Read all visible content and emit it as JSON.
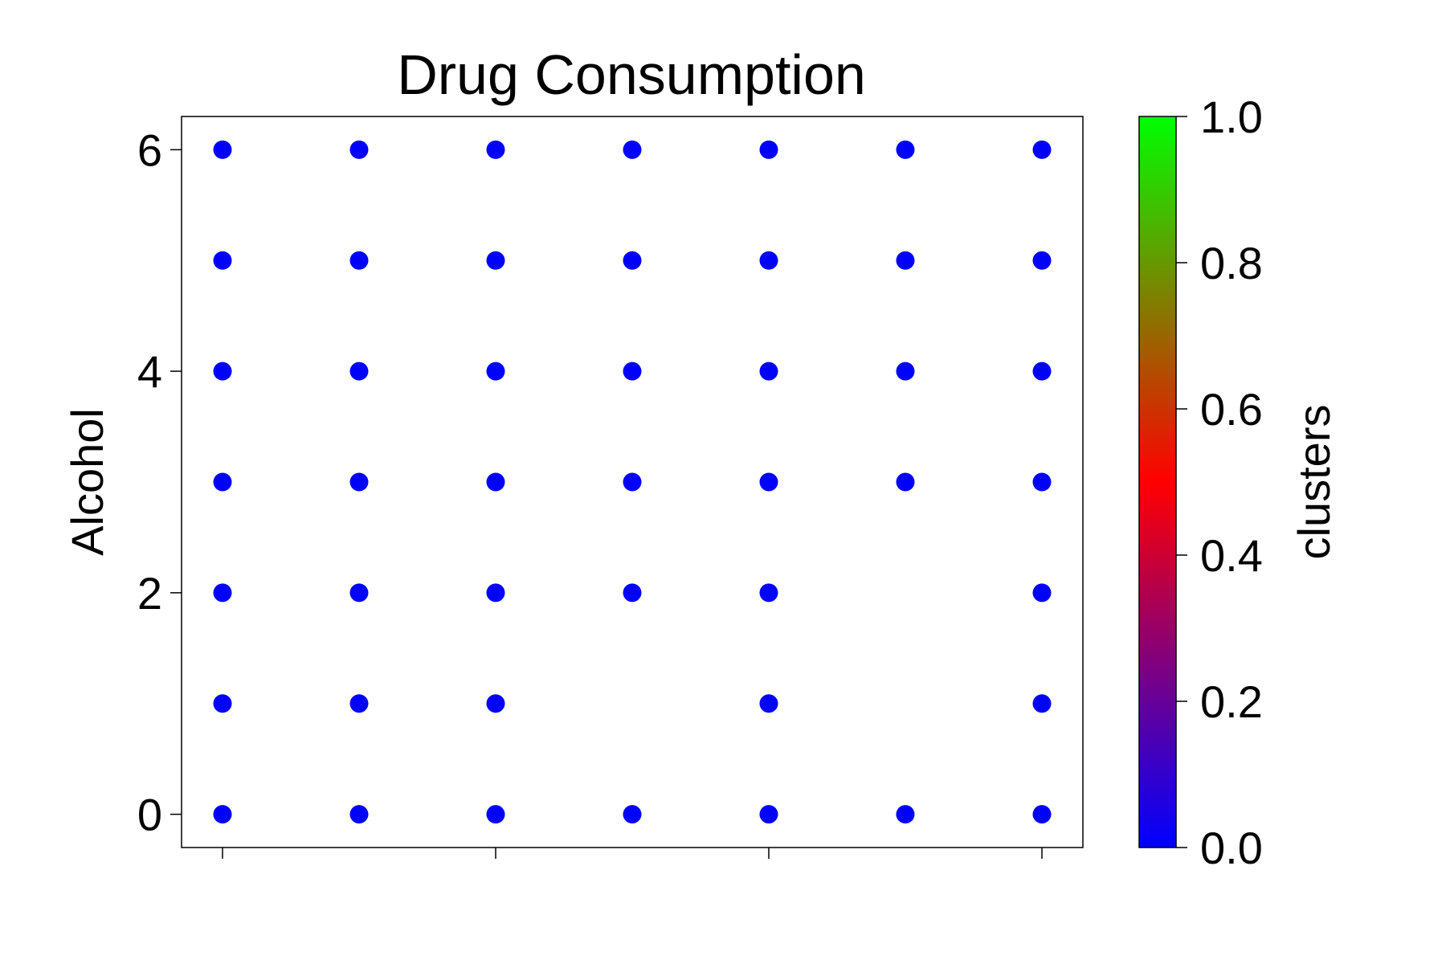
{
  "chart_data": {
    "type": "scatter",
    "title": "Drug Consumption",
    "xlabel": "",
    "ylabel": "Alcohol",
    "xlim": [
      -0.3,
      6.3
    ],
    "ylim": [
      -0.3,
      6.3
    ],
    "x_ticks": [
      0,
      2,
      4,
      6
    ],
    "x_tick_labels": [
      "",
      "",
      "",
      ""
    ],
    "y_ticks": [
      0,
      2,
      4,
      6
    ],
    "y_tick_labels": [
      "0",
      "2",
      "4",
      "6"
    ],
    "grid": false,
    "points": [
      [
        0,
        0
      ],
      [
        1,
        0
      ],
      [
        2,
        0
      ],
      [
        3,
        0
      ],
      [
        4,
        0
      ],
      [
        5,
        0
      ],
      [
        6,
        0
      ],
      [
        0,
        1
      ],
      [
        1,
        1
      ],
      [
        2,
        1
      ],
      [
        4,
        1
      ],
      [
        6,
        1
      ],
      [
        0,
        2
      ],
      [
        1,
        2
      ],
      [
        2,
        2
      ],
      [
        3,
        2
      ],
      [
        4,
        2
      ],
      [
        6,
        2
      ],
      [
        0,
        3
      ],
      [
        1,
        3
      ],
      [
        2,
        3
      ],
      [
        3,
        3
      ],
      [
        4,
        3
      ],
      [
        5,
        3
      ],
      [
        6,
        3
      ],
      [
        0,
        4
      ],
      [
        1,
        4
      ],
      [
        2,
        4
      ],
      [
        3,
        4
      ],
      [
        4,
        4
      ],
      [
        5,
        4
      ],
      [
        6,
        4
      ],
      [
        0,
        5
      ],
      [
        1,
        5
      ],
      [
        2,
        5
      ],
      [
        3,
        5
      ],
      [
        4,
        5
      ],
      [
        5,
        5
      ],
      [
        6,
        5
      ],
      [
        0,
        6
      ],
      [
        1,
        6
      ],
      [
        2,
        6
      ],
      [
        3,
        6
      ],
      [
        4,
        6
      ],
      [
        5,
        6
      ],
      [
        6,
        6
      ]
    ],
    "point_cluster_value": 0.0,
    "point_color": "#0000ff",
    "colorbar": {
      "label": "clusters",
      "range": [
        0.0,
        1.0
      ],
      "ticks": [
        0.0,
        0.2,
        0.4,
        0.6,
        0.8,
        1.0
      ],
      "tick_labels": [
        "0.0",
        "0.2",
        "0.4",
        "0.6",
        "0.8",
        "1.0"
      ],
      "colors": [
        "#0000ff",
        "#ff0000",
        "#00ff00"
      ]
    }
  }
}
